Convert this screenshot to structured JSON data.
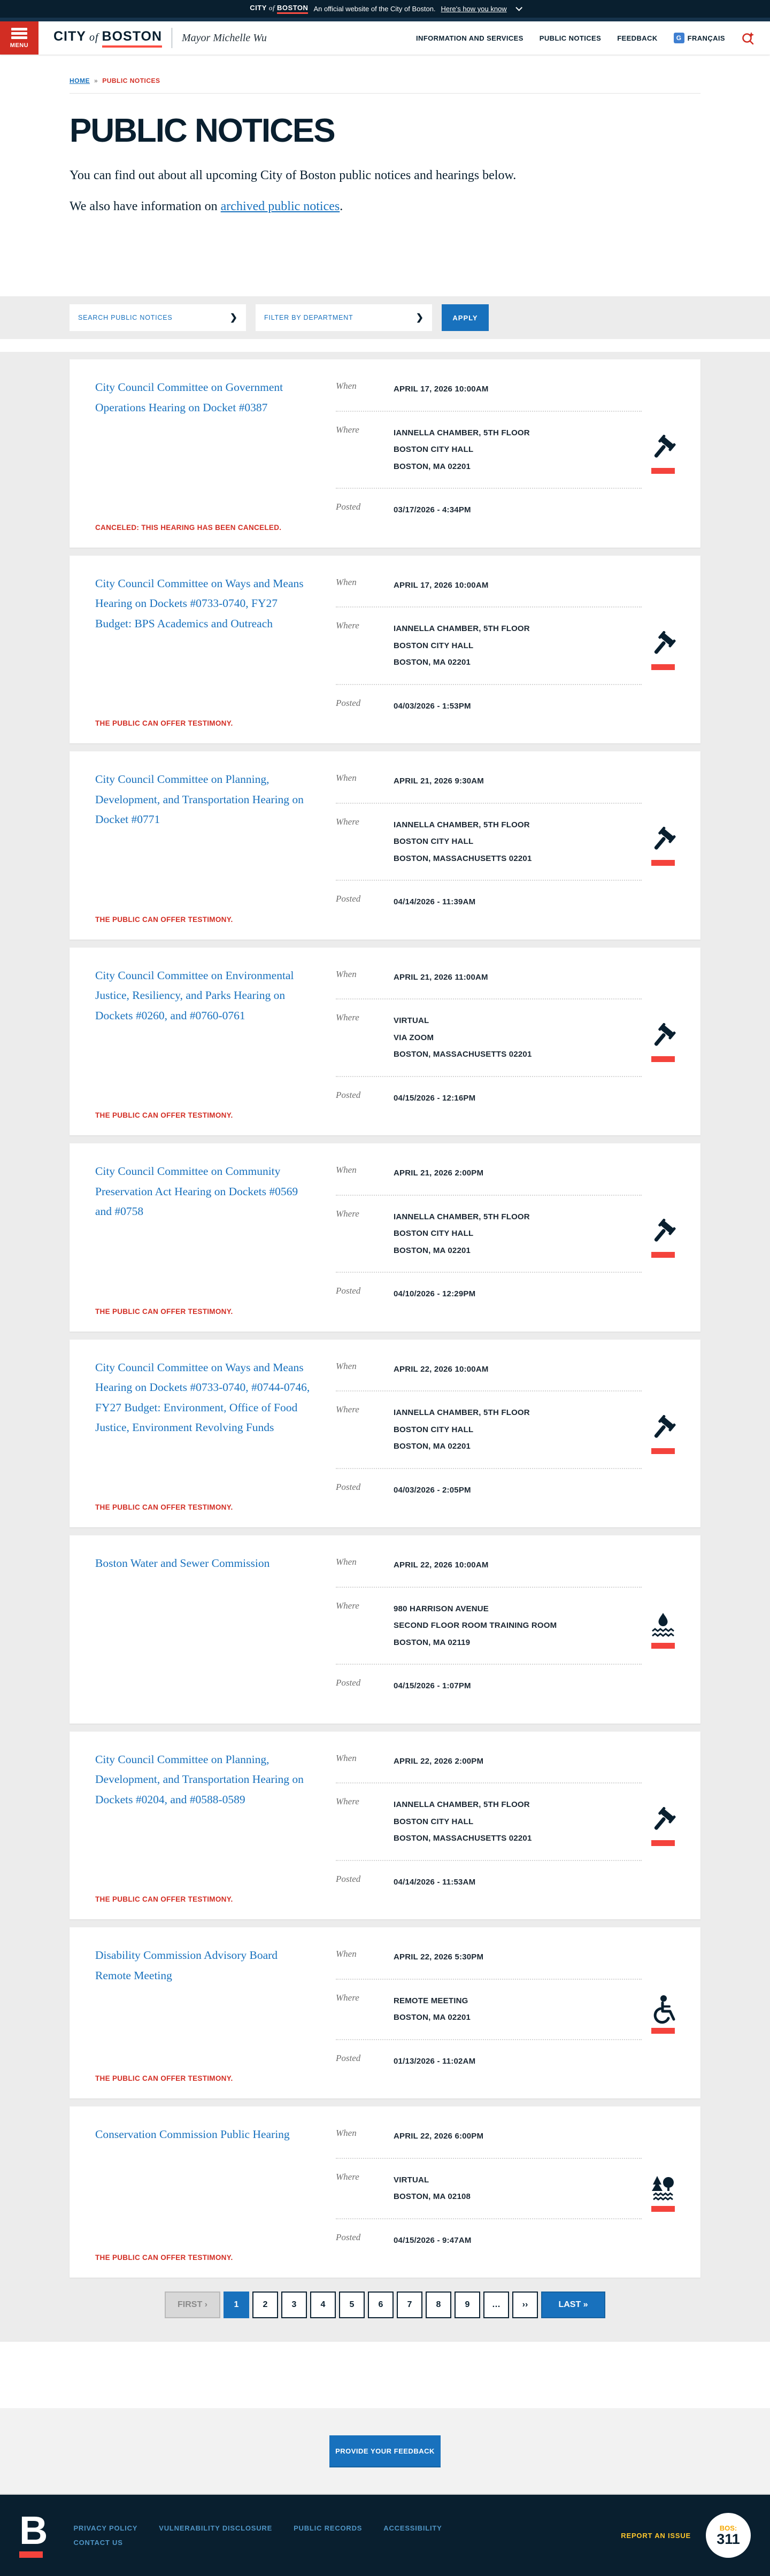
{
  "banner": {
    "brand_city": "CITY",
    "brand_of": "of",
    "brand_boston": "BOSTON",
    "official_text": "An official website of the City of Boston.",
    "how_link": "Here's how you know"
  },
  "header": {
    "menu_label": "MENU",
    "logo_city": "CITY",
    "logo_of": "of",
    "logo_boston": "BOSTON",
    "mayor": "Mayor Michelle Wu",
    "nav": [
      {
        "label": "INFORMATION AND SERVICES"
      },
      {
        "label": "PUBLIC NOTICES"
      },
      {
        "label": "FEEDBACK"
      },
      {
        "label": "FRANÇAIS",
        "icon": "translate-icon"
      }
    ]
  },
  "breadcrumb": {
    "home": "HOME",
    "sep": "»",
    "current": "PUBLIC NOTICES"
  },
  "page": {
    "title": "PUBLIC NOTICES",
    "intro1": "You can find out about all upcoming City of Boston public notices and hearings below.",
    "intro2_prefix": "We also have information on ",
    "intro2_link": "archived public notices",
    "intro2_suffix": "."
  },
  "filters": {
    "search_placeholder": "SEARCH PUBLIC NOTICES",
    "department_placeholder": "FILTER BY DEPARTMENT",
    "chevron": "❯",
    "apply_label": "APPLY"
  },
  "labels": {
    "when": "When",
    "where": "Where",
    "posted": "Posted"
  },
  "cards": [
    {
      "title": "City Council Committee on Government Operations Hearing on Docket #0387",
      "status": "CANCELED: THIS HEARING HAS BEEN CANCELED.",
      "when": "APRIL 17, 2026 10:00AM",
      "where": [
        "IANNELLA CHAMBER, 5TH FLOOR",
        "BOSTON CITY HALL",
        "BOSTON, MA 02201"
      ],
      "posted": "03/17/2026 - 4:34PM",
      "icon": "gavel"
    },
    {
      "title": "City Council Committee on Ways and Means Hearing on Dockets #0733-0740, FY27 Budget: BPS Academics and Outreach",
      "status": "THE PUBLIC CAN OFFER TESTIMONY.",
      "when": "APRIL 17, 2026 10:00AM",
      "where": [
        "IANNELLA CHAMBER, 5TH FLOOR",
        "BOSTON CITY HALL",
        "BOSTON, MA 02201"
      ],
      "posted": "04/03/2026 - 1:53PM",
      "icon": "gavel"
    },
    {
      "title": "City Council Committee on Planning, Development, and Transportation Hearing on Docket #0771",
      "status": "THE PUBLIC CAN OFFER TESTIMONY.",
      "when": "APRIL 21, 2026 9:30AM",
      "where": [
        "IANNELLA CHAMBER, 5TH FLOOR",
        "BOSTON CITY HALL",
        "BOSTON, MASSACHUSETTS 02201"
      ],
      "posted": "04/14/2026 - 11:39AM",
      "icon": "gavel"
    },
    {
      "title": "City Council Committee on Environmental Justice, Resiliency, and Parks Hearing on Dockets #0260, and #0760-0761",
      "status": "THE PUBLIC CAN OFFER TESTIMONY.",
      "when": "APRIL 21, 2026 11:00AM",
      "where": [
        "VIRTUAL",
        "VIA ZOOM",
        "BOSTON, MASSACHUSETTS 02201"
      ],
      "posted": "04/15/2026 - 12:16PM",
      "icon": "gavel"
    },
    {
      "title": "City Council Committee on Community Preservation Act Hearing on Dockets #0569 and #0758",
      "status": "THE PUBLIC CAN OFFER TESTIMONY.",
      "when": "APRIL 21, 2026 2:00PM",
      "where": [
        "IANNELLA CHAMBER, 5TH FLOOR",
        "BOSTON CITY HALL",
        "BOSTON, MA 02201"
      ],
      "posted": "04/10/2026 - 12:29PM",
      "icon": "gavel"
    },
    {
      "title": "City Council Committee on Ways and Means Hearing on Dockets #0733-0740, #0744-0746, FY27 Budget: Environment, Office of Food Justice, Environment Revolving Funds",
      "status": "THE PUBLIC CAN OFFER TESTIMONY.",
      "when": "APRIL 22, 2026 10:00AM",
      "where": [
        "IANNELLA CHAMBER, 5TH FLOOR",
        "BOSTON CITY HALL",
        "BOSTON, MA 02201"
      ],
      "posted": "04/03/2026 - 2:05PM",
      "icon": "gavel"
    },
    {
      "title": "Boston Water and Sewer Commission",
      "status": "",
      "when": "APRIL 22, 2026 10:00AM",
      "where": [
        "980 HARRISON AVENUE",
        "SECOND FLOOR ROOM TRAINING ROOM",
        "BOSTON, MA 02119"
      ],
      "posted": "04/15/2026 - 1:07PM",
      "icon": "water"
    },
    {
      "title": "City Council Committee on Planning, Development, and Transportation Hearing on Dockets #0204, and #0588-0589",
      "status": "THE PUBLIC CAN OFFER TESTIMONY.",
      "when": "APRIL 22, 2026 2:00PM",
      "where": [
        "IANNELLA CHAMBER, 5TH FLOOR",
        "BOSTON CITY HALL",
        "BOSTON, MASSACHUSETTS 02201"
      ],
      "posted": "04/14/2026 - 11:53AM",
      "icon": "gavel"
    },
    {
      "title": "Disability Commission Advisory Board Remote Meeting",
      "status": "THE PUBLIC CAN OFFER TESTIMONY.",
      "when": "APRIL 22, 2026 5:30PM",
      "where": [
        "REMOTE MEETING",
        "BOSTON, MA 02201"
      ],
      "posted": "01/13/2026 - 11:02AM",
      "icon": "accessibility"
    },
    {
      "title": "Conservation Commission Public Hearing",
      "status": "THE PUBLIC CAN OFFER TESTIMONY.",
      "when": "APRIL 22, 2026 6:00PM",
      "where": [
        "VIRTUAL",
        "BOSTON, MA 02108"
      ],
      "posted": "04/15/2026 - 9:47AM",
      "icon": "conservation"
    }
  ],
  "pagination": {
    "items": [
      {
        "label": "FIRST ›",
        "type": "first"
      },
      {
        "label": "1",
        "type": "active"
      },
      {
        "label": "2",
        "type": "page"
      },
      {
        "label": "3",
        "type": "page"
      },
      {
        "label": "4",
        "type": "page"
      },
      {
        "label": "5",
        "type": "page"
      },
      {
        "label": "6",
        "type": "page"
      },
      {
        "label": "7",
        "type": "page"
      },
      {
        "label": "8",
        "type": "page"
      },
      {
        "label": "9",
        "type": "page"
      },
      {
        "label": "…",
        "type": "page"
      },
      {
        "label": "››",
        "type": "page"
      },
      {
        "label": "LAST »",
        "type": "last"
      }
    ]
  },
  "feedback": {
    "button_label": "PROVIDE YOUR FEEDBACK"
  },
  "footer": {
    "logo_letter": "B",
    "links_row1": [
      "PRIVACY POLICY",
      "VULNERABILITY DISCLOSURE",
      "PUBLIC RECORDS",
      "ACCESSIBILITY"
    ],
    "links_row2": [
      "CONTACT US"
    ],
    "report_issue": "REPORT AN ISSUE",
    "bos_label": "BOS:",
    "three11": "311"
  }
}
